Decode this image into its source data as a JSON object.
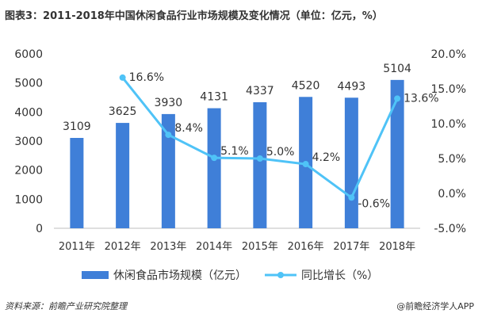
{
  "title": "图表3：2011-2018年中国休闲食品行业市场规模及变化情况（单位：亿元，%）",
  "source": "资料来源：前瞻产业研究院整理",
  "brand": "@前瞻经济学人APP",
  "colors": {
    "bar": "#3f7fd8",
    "line": "#4fc3f7"
  },
  "chart_data": {
    "type": "bar+line",
    "categories": [
      "2011年",
      "2012年",
      "2013年",
      "2014年",
      "2015年",
      "2016年",
      "2017年",
      "2018年"
    ],
    "series": [
      {
        "name": "休闲食品市场规模（亿元）",
        "type": "bar",
        "axis": "left",
        "values": [
          3109,
          3625,
          3930,
          4131,
          4337,
          4520,
          4493,
          5104
        ],
        "labels": [
          "3109",
          "3625",
          "3930",
          "4131",
          "4337",
          "4520",
          "4493",
          "5104"
        ]
      },
      {
        "name": "同比增长（%）",
        "type": "line",
        "axis": "right",
        "values": [
          null,
          16.6,
          8.4,
          5.1,
          5.0,
          4.2,
          -0.6,
          13.6
        ],
        "labels": [
          "",
          "16.6%",
          "8.4%",
          "5.1%",
          "5.0%",
          "4.2%",
          "-0.6%",
          "13.6%"
        ]
      }
    ],
    "y_left": {
      "min": 0,
      "max": 6000,
      "ticks": [
        "0",
        "1000",
        "2000",
        "3000",
        "4000",
        "5000",
        "6000"
      ]
    },
    "y_right": {
      "min": -5,
      "max": 20,
      "ticks": [
        "-5.0%",
        "0.0%",
        "5.0%",
        "10.0%",
        "15.0%",
        "20.0%"
      ]
    },
    "legend_position": "bottom"
  }
}
